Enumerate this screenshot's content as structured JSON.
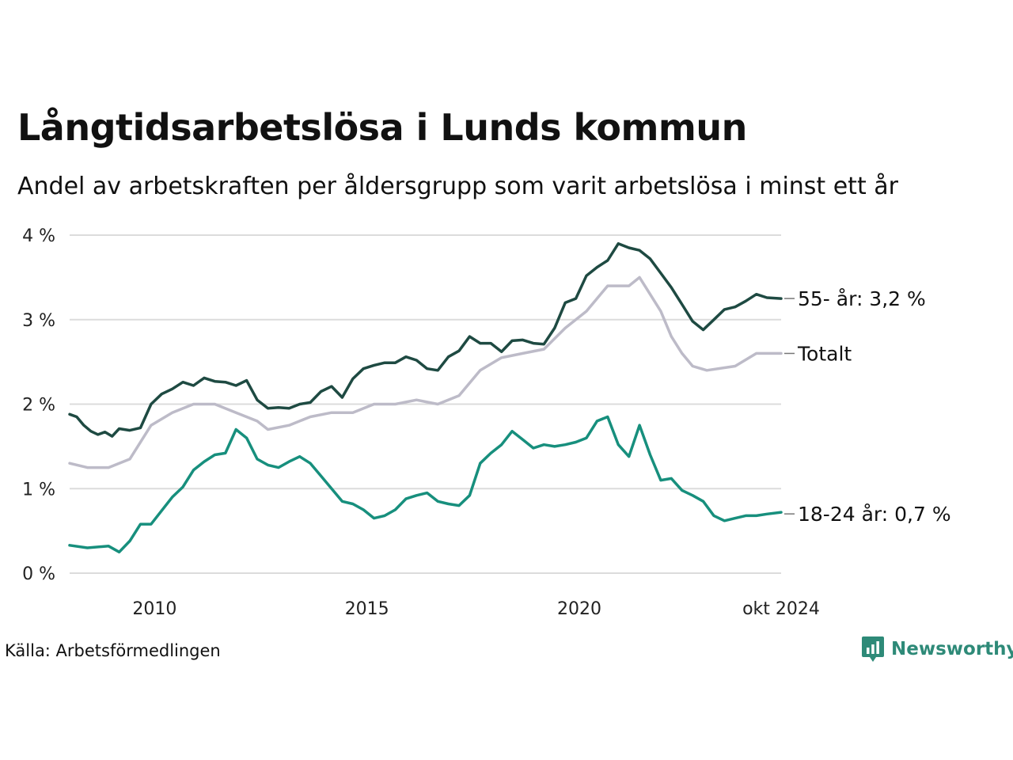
{
  "title": "Långtidsarbetslösa i Lunds kommun",
  "subtitle": "Andel av arbetskraften per åldersgrupp som varit arbetslösa i minst ett år",
  "source": "Källa: Arbetsförmedlingen",
  "brand": "Newsworthy",
  "colors": {
    "older": "#1e4a42",
    "total": "#bdbbc8",
    "young": "#178f7d",
    "grid": "#dcdcdc",
    "brand": "#2e8a78"
  },
  "chart_data": {
    "type": "line",
    "x_start": "2008-01",
    "x_end": "2024-10",
    "x_step": "month",
    "ylim": [
      0,
      4
    ],
    "y_ticks": [
      0,
      1,
      2,
      3,
      4
    ],
    "y_tick_labels": [
      "0 %",
      "1 %",
      "2 %",
      "3 %",
      "4 %"
    ],
    "x_tick_labels": [
      {
        "date": "2010-01",
        "label": "2010"
      },
      {
        "date": "2015-01",
        "label": "2015"
      },
      {
        "date": "2020-01",
        "label": "2020"
      },
      {
        "date": "2024-10",
        "label": "okt 2024"
      }
    ],
    "grid": true,
    "series": [
      {
        "key": "older",
        "end_label": "55- år: 3,2 %",
        "keypoints": [
          [
            "2008-01",
            1.88
          ],
          [
            "2008-03",
            1.85
          ],
          [
            "2008-05",
            1.75
          ],
          [
            "2008-07",
            1.68
          ],
          [
            "2008-09",
            1.64
          ],
          [
            "2008-11",
            1.67
          ],
          [
            "2009-01",
            1.62
          ],
          [
            "2009-03",
            1.71
          ],
          [
            "2009-06",
            1.69
          ],
          [
            "2009-09",
            1.72
          ],
          [
            "2009-12",
            2.0
          ],
          [
            "2010-03",
            2.12
          ],
          [
            "2010-06",
            2.18
          ],
          [
            "2010-09",
            2.26
          ],
          [
            "2010-12",
            2.22
          ],
          [
            "2011-03",
            2.31
          ],
          [
            "2011-06",
            2.27
          ],
          [
            "2011-09",
            2.26
          ],
          [
            "2011-12",
            2.22
          ],
          [
            "2012-03",
            2.28
          ],
          [
            "2012-06",
            2.05
          ],
          [
            "2012-09",
            1.95
          ],
          [
            "2012-12",
            1.96
          ],
          [
            "2013-03",
            1.95
          ],
          [
            "2013-06",
            2.0
          ],
          [
            "2013-09",
            2.02
          ],
          [
            "2013-12",
            2.15
          ],
          [
            "2014-03",
            2.21
          ],
          [
            "2014-06",
            2.08
          ],
          [
            "2014-09",
            2.3
          ],
          [
            "2014-12",
            2.42
          ],
          [
            "2015-03",
            2.46
          ],
          [
            "2015-06",
            2.49
          ],
          [
            "2015-09",
            2.49
          ],
          [
            "2015-12",
            2.56
          ],
          [
            "2016-03",
            2.52
          ],
          [
            "2016-06",
            2.42
          ],
          [
            "2016-09",
            2.4
          ],
          [
            "2016-12",
            2.56
          ],
          [
            "2017-03",
            2.63
          ],
          [
            "2017-06",
            2.8
          ],
          [
            "2017-09",
            2.72
          ],
          [
            "2017-12",
            2.72
          ],
          [
            "2018-03",
            2.62
          ],
          [
            "2018-06",
            2.75
          ],
          [
            "2018-09",
            2.76
          ],
          [
            "2018-12",
            2.72
          ],
          [
            "2019-03",
            2.71
          ],
          [
            "2019-06",
            2.9
          ],
          [
            "2019-09",
            3.2
          ],
          [
            "2019-12",
            3.25
          ],
          [
            "2020-03",
            3.52
          ],
          [
            "2020-06",
            3.62
          ],
          [
            "2020-09",
            3.7
          ],
          [
            "2020-12",
            3.9
          ],
          [
            "2021-03",
            3.85
          ],
          [
            "2021-06",
            3.82
          ],
          [
            "2021-09",
            3.72
          ],
          [
            "2021-12",
            3.55
          ],
          [
            "2022-03",
            3.38
          ],
          [
            "2022-06",
            3.18
          ],
          [
            "2022-09",
            2.98
          ],
          [
            "2022-12",
            2.88
          ],
          [
            "2023-03",
            3.0
          ],
          [
            "2023-06",
            3.12
          ],
          [
            "2023-09",
            3.15
          ],
          [
            "2023-12",
            3.22
          ],
          [
            "2024-03",
            3.3
          ],
          [
            "2024-06",
            3.26
          ],
          [
            "2024-10",
            3.25
          ]
        ]
      },
      {
        "key": "total",
        "end_label": "Totalt",
        "keypoints": [
          [
            "2008-01",
            1.3
          ],
          [
            "2008-06",
            1.25
          ],
          [
            "2008-12",
            1.25
          ],
          [
            "2009-06",
            1.35
          ],
          [
            "2009-12",
            1.75
          ],
          [
            "2010-06",
            1.9
          ],
          [
            "2010-12",
            2.0
          ],
          [
            "2011-06",
            2.0
          ],
          [
            "2011-12",
            1.9
          ],
          [
            "2012-06",
            1.8
          ],
          [
            "2012-09",
            1.7
          ],
          [
            "2013-03",
            1.75
          ],
          [
            "2013-09",
            1.85
          ],
          [
            "2014-03",
            1.9
          ],
          [
            "2014-09",
            1.9
          ],
          [
            "2015-03",
            2.0
          ],
          [
            "2015-09",
            2.0
          ],
          [
            "2016-03",
            2.05
          ],
          [
            "2016-09",
            2.0
          ],
          [
            "2017-03",
            2.1
          ],
          [
            "2017-09",
            2.4
          ],
          [
            "2018-03",
            2.55
          ],
          [
            "2018-09",
            2.6
          ],
          [
            "2019-03",
            2.65
          ],
          [
            "2019-09",
            2.9
          ],
          [
            "2020-03",
            3.1
          ],
          [
            "2020-09",
            3.4
          ],
          [
            "2021-03",
            3.4
          ],
          [
            "2021-06",
            3.5
          ],
          [
            "2021-09",
            3.3
          ],
          [
            "2021-12",
            3.1
          ],
          [
            "2022-03",
            2.8
          ],
          [
            "2022-06",
            2.6
          ],
          [
            "2022-09",
            2.45
          ],
          [
            "2023-01",
            2.4
          ],
          [
            "2023-09",
            2.45
          ],
          [
            "2024-03",
            2.6
          ],
          [
            "2024-10",
            2.6
          ]
        ]
      },
      {
        "key": "young",
        "end_label": "18-24 år: 0,7 %",
        "keypoints": [
          [
            "2008-01",
            0.33
          ],
          [
            "2008-06",
            0.3
          ],
          [
            "2008-12",
            0.32
          ],
          [
            "2009-03",
            0.25
          ],
          [
            "2009-06",
            0.38
          ],
          [
            "2009-09",
            0.58
          ],
          [
            "2009-12",
            0.58
          ],
          [
            "2010-06",
            0.9
          ],
          [
            "2010-09",
            1.02
          ],
          [
            "2010-12",
            1.22
          ],
          [
            "2011-03",
            1.32
          ],
          [
            "2011-06",
            1.4
          ],
          [
            "2011-09",
            1.42
          ],
          [
            "2011-12",
            1.7
          ],
          [
            "2012-03",
            1.6
          ],
          [
            "2012-06",
            1.35
          ],
          [
            "2012-09",
            1.28
          ],
          [
            "2012-12",
            1.25
          ],
          [
            "2013-03",
            1.32
          ],
          [
            "2013-06",
            1.38
          ],
          [
            "2013-09",
            1.3
          ],
          [
            "2013-12",
            1.15
          ],
          [
            "2014-03",
            1.0
          ],
          [
            "2014-06",
            0.85
          ],
          [
            "2014-09",
            0.82
          ],
          [
            "2014-12",
            0.75
          ],
          [
            "2015-03",
            0.65
          ],
          [
            "2015-06",
            0.68
          ],
          [
            "2015-09",
            0.75
          ],
          [
            "2015-12",
            0.88
          ],
          [
            "2016-03",
            0.92
          ],
          [
            "2016-06",
            0.95
          ],
          [
            "2016-09",
            0.85
          ],
          [
            "2016-12",
            0.82
          ],
          [
            "2017-03",
            0.8
          ],
          [
            "2017-06",
            0.92
          ],
          [
            "2017-09",
            1.3
          ],
          [
            "2017-12",
            1.42
          ],
          [
            "2018-03",
            1.52
          ],
          [
            "2018-06",
            1.68
          ],
          [
            "2018-09",
            1.58
          ],
          [
            "2018-12",
            1.48
          ],
          [
            "2019-03",
            1.52
          ],
          [
            "2019-06",
            1.5
          ],
          [
            "2019-09",
            1.52
          ],
          [
            "2019-12",
            1.55
          ],
          [
            "2020-03",
            1.6
          ],
          [
            "2020-06",
            1.8
          ],
          [
            "2020-09",
            1.85
          ],
          [
            "2020-12",
            1.52
          ],
          [
            "2021-03",
            1.38
          ],
          [
            "2021-06",
            1.75
          ],
          [
            "2021-09",
            1.4
          ],
          [
            "2021-12",
            1.1
          ],
          [
            "2022-03",
            1.12
          ],
          [
            "2022-06",
            0.98
          ],
          [
            "2022-09",
            0.92
          ],
          [
            "2022-12",
            0.85
          ],
          [
            "2023-03",
            0.68
          ],
          [
            "2023-06",
            0.62
          ],
          [
            "2023-09",
            0.65
          ],
          [
            "2023-12",
            0.68
          ],
          [
            "2024-03",
            0.68
          ],
          [
            "2024-06",
            0.7
          ],
          [
            "2024-10",
            0.72
          ]
        ]
      }
    ]
  }
}
